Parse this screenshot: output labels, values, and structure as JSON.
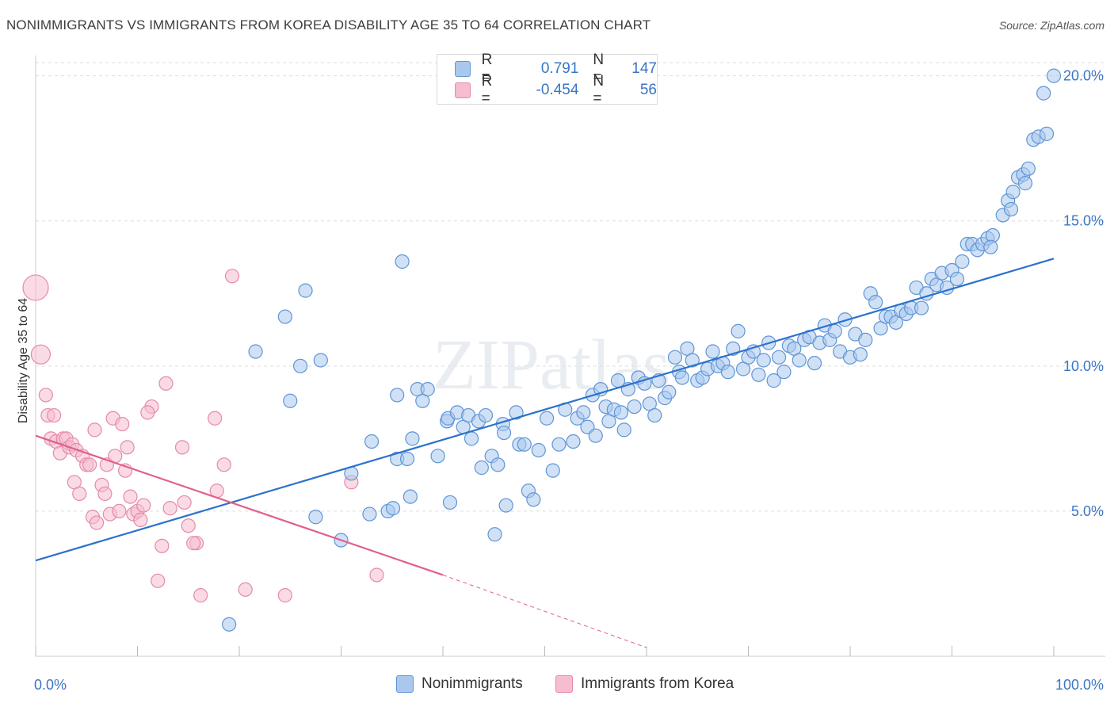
{
  "title": "NONIMMIGRANTS VS IMMIGRANTS FROM KOREA DISABILITY AGE 35 TO 64 CORRELATION CHART",
  "source": "Source: ZipAtlas.com",
  "watermark": "ZIPatlas",
  "colors": {
    "blue_fill": "#aac8ee",
    "blue_stroke": "#5f95d6",
    "blue_line": "#2c72cc",
    "pink_fill": "#f6bcd0",
    "pink_stroke": "#e58aa8",
    "pink_line": "#e0608e",
    "value_text": "#3a75c4",
    "grid": "#dddddd"
  },
  "legend": {
    "r_label": "R =",
    "n_label": "N =",
    "blue": {
      "r": "0.791",
      "n": "147"
    },
    "pink": {
      "r": "-0.454",
      "n": "56"
    }
  },
  "bottom_legend": {
    "blue": "Nonimmigrants",
    "pink": "Immigrants from Korea"
  },
  "chart_data": {
    "type": "scatter",
    "title": "NONIMMIGRANTS VS IMMIGRANTS FROM KOREA DISABILITY AGE 35 TO 64 CORRELATION CHART",
    "xlabel": "",
    "ylabel": "Disability Age 35 to 64",
    "xlim": [
      0,
      100
    ],
    "ylim": [
      0,
      20.7
    ],
    "x_tick_labels": [
      "0.0%",
      "100.0%"
    ],
    "y_ticks": [
      5,
      10,
      15,
      20
    ],
    "y_tick_labels": [
      "5.0%",
      "10.0%",
      "15.0%",
      "20.0%"
    ],
    "series": [
      {
        "name": "Nonimmigrants",
        "color": "blue",
        "trend": {
          "x": [
            0,
            100
          ],
          "y": [
            3.3,
            13.7
          ]
        },
        "points": [
          [
            19,
            1.1
          ],
          [
            30,
            4
          ],
          [
            27.5,
            4.8
          ],
          [
            31,
            6.3
          ],
          [
            32.8,
            4.9
          ],
          [
            33,
            7.4
          ],
          [
            34.6,
            5.0
          ],
          [
            35.1,
            5.1
          ],
          [
            35.5,
            6.8
          ],
          [
            36.5,
            6.8
          ],
          [
            36.8,
            5.5
          ],
          [
            37,
            7.5
          ],
          [
            38,
            8.8
          ],
          [
            39.5,
            6.9
          ],
          [
            40.4,
            8.1
          ],
          [
            40.5,
            8.2
          ],
          [
            40.7,
            5.3
          ],
          [
            41.4,
            8.4
          ],
          [
            42,
            7.9
          ],
          [
            42.5,
            8.3
          ],
          [
            42.8,
            7.5
          ],
          [
            43.5,
            8.1
          ],
          [
            43.8,
            6.5
          ],
          [
            44.2,
            8.3
          ],
          [
            44.8,
            6.9
          ],
          [
            45.1,
            4.2
          ],
          [
            45.4,
            6.6
          ],
          [
            45.9,
            8.0
          ],
          [
            46,
            7.7
          ],
          [
            46.2,
            5.2
          ],
          [
            47.2,
            8.4
          ],
          [
            47.5,
            7.3
          ],
          [
            48,
            7.3
          ],
          [
            48.4,
            5.7
          ],
          [
            48.9,
            5.4
          ],
          [
            49.4,
            7.1
          ],
          [
            50.2,
            8.2
          ],
          [
            50.8,
            6.4
          ],
          [
            51.4,
            7.3
          ],
          [
            52,
            8.5
          ],
          [
            52.8,
            7.4
          ],
          [
            53.2,
            8.2
          ],
          [
            53.8,
            8.4
          ],
          [
            54.2,
            7.9
          ],
          [
            54.7,
            9.0
          ],
          [
            55,
            7.6
          ],
          [
            55.5,
            9.2
          ],
          [
            56,
            8.6
          ],
          [
            56.3,
            8.1
          ],
          [
            56.8,
            8.5
          ],
          [
            57.2,
            9.5
          ],
          [
            57.5,
            8.4
          ],
          [
            57.8,
            7.8
          ],
          [
            58.2,
            9.2
          ],
          [
            58.8,
            8.6
          ],
          [
            59.2,
            9.6
          ],
          [
            59.8,
            9.4
          ],
          [
            60.3,
            8.7
          ],
          [
            60.8,
            8.3
          ],
          [
            61.2,
            9.5
          ],
          [
            61.8,
            8.9
          ],
          [
            62.2,
            9.1
          ],
          [
            62.8,
            10.3
          ],
          [
            63.2,
            9.8
          ],
          [
            63.5,
            9.6
          ],
          [
            64,
            10.6
          ],
          [
            64.5,
            10.2
          ],
          [
            65,
            9.5
          ],
          [
            65.5,
            9.6
          ],
          [
            66,
            9.9
          ],
          [
            66.5,
            10.5
          ],
          [
            67,
            10.0
          ],
          [
            67.5,
            10.1
          ],
          [
            68,
            9.8
          ],
          [
            68.5,
            10.6
          ],
          [
            69,
            11.2
          ],
          [
            69.5,
            9.9
          ],
          [
            70,
            10.3
          ],
          [
            70.5,
            10.5
          ],
          [
            71,
            9.7
          ],
          [
            71.5,
            10.2
          ],
          [
            72,
            10.8
          ],
          [
            72.5,
            9.5
          ],
          [
            73,
            10.3
          ],
          [
            73.5,
            9.8
          ],
          [
            74,
            10.7
          ],
          [
            74.5,
            10.6
          ],
          [
            75,
            10.2
          ],
          [
            75.5,
            10.9
          ],
          [
            76,
            11.0
          ],
          [
            76.5,
            10.1
          ],
          [
            77,
            10.8
          ],
          [
            77.5,
            11.4
          ],
          [
            78,
            10.9
          ],
          [
            78.5,
            11.2
          ],
          [
            79,
            10.5
          ],
          [
            79.5,
            11.6
          ],
          [
            80,
            10.3
          ],
          [
            80.5,
            11.1
          ],
          [
            81,
            10.4
          ],
          [
            81.5,
            10.9
          ],
          [
            82,
            12.5
          ],
          [
            82.5,
            12.2
          ],
          [
            83,
            11.3
          ],
          [
            83.5,
            11.7
          ],
          [
            84,
            11.7
          ],
          [
            84.5,
            11.5
          ],
          [
            85,
            11.9
          ],
          [
            85.5,
            11.8
          ],
          [
            86,
            12.0
          ],
          [
            86.5,
            12.7
          ],
          [
            87,
            12.0
          ],
          [
            87.5,
            12.5
          ],
          [
            88,
            13.0
          ],
          [
            88.5,
            12.8
          ],
          [
            89,
            13.2
          ],
          [
            89.5,
            12.7
          ],
          [
            90,
            13.3
          ],
          [
            90.5,
            13.0
          ],
          [
            91,
            13.6
          ],
          [
            91.5,
            14.2
          ],
          [
            92,
            14.2
          ],
          [
            92.5,
            14.0
          ],
          [
            93,
            14.2
          ],
          [
            93.5,
            14.4
          ],
          [
            94,
            14.5
          ],
          [
            95,
            15.2
          ],
          [
            95.5,
            15.7
          ],
          [
            96,
            16.0
          ],
          [
            96.5,
            16.5
          ],
          [
            97,
            16.6
          ],
          [
            97.5,
            16.8
          ],
          [
            98,
            17.8
          ],
          [
            98.5,
            17.9
          ],
          [
            99,
            19.4
          ],
          [
            100,
            20.0
          ],
          [
            97.2,
            16.3
          ],
          [
            99.3,
            18.0
          ],
          [
            95.8,
            15.4
          ],
          [
            93.8,
            14.1
          ],
          [
            21.6,
            10.5
          ],
          [
            24.5,
            11.7
          ],
          [
            25,
            8.8
          ],
          [
            26,
            10.0
          ],
          [
            26.5,
            12.6
          ],
          [
            28,
            10.2
          ],
          [
            35.5,
            9.0
          ],
          [
            36,
            13.6
          ],
          [
            37.5,
            9.2
          ],
          [
            38.5,
            9.2
          ]
        ]
      },
      {
        "name": "Immigrants from Korea",
        "color": "pink",
        "trend": {
          "x": [
            0,
            40
          ],
          "y": [
            7.6,
            2.8
          ],
          "dashed_to": [
            60,
            0.3
          ]
        },
        "points": [
          [
            0,
            12.7
          ],
          [
            0.5,
            10.4
          ],
          [
            1.0,
            9.0
          ],
          [
            1.2,
            8.3
          ],
          [
            1.8,
            8.3
          ],
          [
            1.5,
            7.5
          ],
          [
            2.0,
            7.4
          ],
          [
            2.4,
            7.0
          ],
          [
            2.7,
            7.5
          ],
          [
            3.0,
            7.5
          ],
          [
            3.3,
            7.2
          ],
          [
            3.6,
            7.3
          ],
          [
            3.8,
            6.0
          ],
          [
            4.0,
            7.1
          ],
          [
            4.3,
            5.6
          ],
          [
            4.6,
            6.9
          ],
          [
            5.0,
            6.6
          ],
          [
            5.3,
            6.6
          ],
          [
            5.6,
            4.8
          ],
          [
            5.8,
            7.8
          ],
          [
            6.0,
            4.6
          ],
          [
            6.5,
            5.9
          ],
          [
            6.8,
            5.6
          ],
          [
            7.0,
            6.6
          ],
          [
            7.3,
            4.9
          ],
          [
            7.6,
            8.2
          ],
          [
            7.8,
            6.9
          ],
          [
            8.2,
            5.0
          ],
          [
            8.5,
            8.0
          ],
          [
            8.8,
            6.4
          ],
          [
            9.0,
            7.2
          ],
          [
            9.3,
            5.5
          ],
          [
            9.6,
            4.9
          ],
          [
            10.0,
            5.0
          ],
          [
            10.3,
            4.7
          ],
          [
            10.6,
            5.2
          ],
          [
            11.4,
            8.6
          ],
          [
            11.0,
            8.4
          ],
          [
            12.0,
            2.6
          ],
          [
            12.4,
            3.8
          ],
          [
            12.8,
            9.4
          ],
          [
            13.2,
            5.1
          ],
          [
            14.4,
            7.2
          ],
          [
            14.6,
            5.3
          ],
          [
            15.0,
            4.5
          ],
          [
            15.8,
            3.9
          ],
          [
            15.5,
            3.9
          ],
          [
            16.2,
            2.1
          ],
          [
            17.6,
            8.2
          ],
          [
            17.8,
            5.7
          ],
          [
            18.5,
            6.6
          ],
          [
            19.3,
            13.1
          ],
          [
            20.6,
            2.3
          ],
          [
            24.5,
            2.1
          ],
          [
            31,
            6.0
          ],
          [
            33.5,
            2.8
          ]
        ]
      }
    ]
  }
}
